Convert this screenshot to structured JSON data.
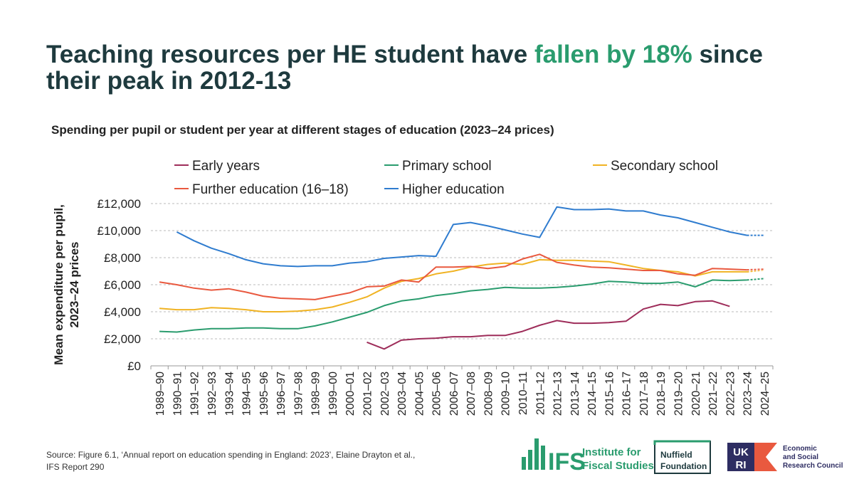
{
  "title_parts": [
    "Teaching resources per HE student have ",
    "fallen by 18%",
    " since",
    "their peak in 2012-13"
  ],
  "chart_data": {
    "type": "line",
    "title": "Spending per pupil or student per year at different stages of education (2023–24 prices)",
    "ylabel": [
      "Mean expenditure per pupil,",
      "2023–24 prices"
    ],
    "categories": [
      "1989–90",
      "1990–91",
      "1991–92",
      "1992–93",
      "1993–94",
      "1994–95",
      "1995–96",
      "1996–97",
      "1997–98",
      "1998–99",
      "1999–00",
      "2000–01",
      "2001–02",
      "2002–03",
      "2003–04",
      "2004–05",
      "2005–06",
      "2006–07",
      "2007–08",
      "2008–09",
      "2009–10",
      "2010–11",
      "2011–12",
      "2012–13",
      "2013–14",
      "2014–15",
      "2015–16",
      "2016–17",
      "2017–18",
      "2018–19",
      "2019–20",
      "2020–21",
      "2021–22",
      "2022–23",
      "2023–24",
      "2024–25"
    ],
    "series": [
      {
        "name": "Early years",
        "color": "#9e2d5a",
        "values": [
          null,
          null,
          null,
          null,
          null,
          null,
          null,
          null,
          null,
          null,
          null,
          null,
          1750,
          1250,
          1900,
          2000,
          2050,
          2150,
          2150,
          2250,
          2250,
          2550,
          3000,
          3350,
          3150,
          3150,
          3200,
          3300,
          4200,
          4550,
          4450,
          4750,
          4800,
          4400,
          null,
          null
        ]
      },
      {
        "name": "Primary school",
        "color": "#2a9c6e",
        "values": [
          2550,
          2500,
          2650,
          2750,
          2750,
          2800,
          2800,
          2750,
          2750,
          2950,
          3250,
          3600,
          3950,
          4450,
          4800,
          4950,
          5200,
          5350,
          5550,
          5650,
          5800,
          5750,
          5750,
          5800,
          5900,
          6050,
          6250,
          6200,
          6100,
          6100,
          6200,
          5850,
          6350,
          6300,
          6350,
          6450
        ]
      },
      {
        "name": "Secondary school",
        "color": "#f0b323",
        "values": [
          4250,
          4150,
          4150,
          4300,
          4250,
          4150,
          4000,
          4000,
          4050,
          4150,
          4350,
          4700,
          5100,
          5750,
          6250,
          6450,
          6800,
          7000,
          7300,
          7500,
          7600,
          7500,
          7850,
          7800,
          7800,
          7750,
          7700,
          7450,
          7200,
          7050,
          6950,
          6650,
          6950,
          6950,
          6950,
          7100
        ]
      },
      {
        "name": "Further education (16–18)",
        "color": "#e9593f",
        "values": [
          6200,
          6000,
          5750,
          5600,
          5700,
          5450,
          5150,
          5000,
          4950,
          4900,
          5150,
          5400,
          5850,
          5900,
          6350,
          6200,
          7300,
          7300,
          7350,
          7200,
          7350,
          7900,
          8250,
          7650,
          7450,
          7300,
          7250,
          7150,
          7050,
          7050,
          6800,
          6700,
          7200,
          7150,
          7100,
          7150
        ]
      },
      {
        "name": "Higher education",
        "color": "#2f7ccf",
        "values": [
          null,
          9900,
          9250,
          8700,
          8300,
          7850,
          7550,
          7400,
          7350,
          7400,
          7400,
          7600,
          7700,
          7950,
          8050,
          8150,
          8100,
          10450,
          10600,
          10350,
          10050,
          9750,
          9500,
          11750,
          11550,
          11550,
          11600,
          11450,
          11450,
          11150,
          10950,
          10600,
          10250,
          9900,
          9650,
          9650
        ]
      }
    ],
    "ylim": [
      0,
      12000
    ],
    "yticks": [
      {
        "value": 0,
        "label": "£0"
      },
      {
        "value": 2000,
        "label": "£2,000"
      },
      {
        "value": 4000,
        "label": "£4,000"
      },
      {
        "value": 6000,
        "label": "£6,000"
      },
      {
        "value": 8000,
        "label": "£8,000"
      },
      {
        "value": 10000,
        "label": "£10,000"
      },
      {
        "value": 12000,
        "label": "£12,000"
      }
    ],
    "grid": true
  },
  "footer": {
    "source": [
      "Source: Figure 6.1, ‘Annual report on education spending in England: 2023’, Elaine Drayton et al.,",
      "IFS Report 290"
    ],
    "ifs": [
      "IFS",
      "Institute for",
      "Fiscal Studies"
    ],
    "nuffield": [
      "Nuffield",
      "Foundation"
    ],
    "ukri": [
      "UK",
      "RI"
    ],
    "esrc": [
      "Economic",
      "and Social",
      "Research Council"
    ]
  }
}
